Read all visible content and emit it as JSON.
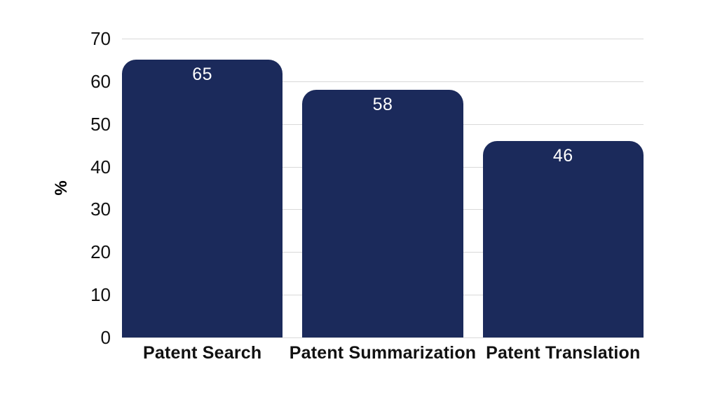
{
  "chart_data": {
    "type": "bar",
    "categories": [
      "Patent Search",
      "Patent Summarization",
      "Patent Translation"
    ],
    "values": [
      65,
      58,
      46
    ],
    "title": "",
    "xlabel": "",
    "ylabel": "%",
    "ylim": [
      0,
      70
    ],
    "yticks": [
      0,
      10,
      20,
      30,
      40,
      50,
      60,
      70
    ],
    "grid": true,
    "legend": "none",
    "colors": {
      "bar": "#1b2a5b",
      "gridline": "#d9d9d9",
      "tick_text": "#111111",
      "value_text": "#ffffff",
      "background": "#ffffff"
    }
  }
}
